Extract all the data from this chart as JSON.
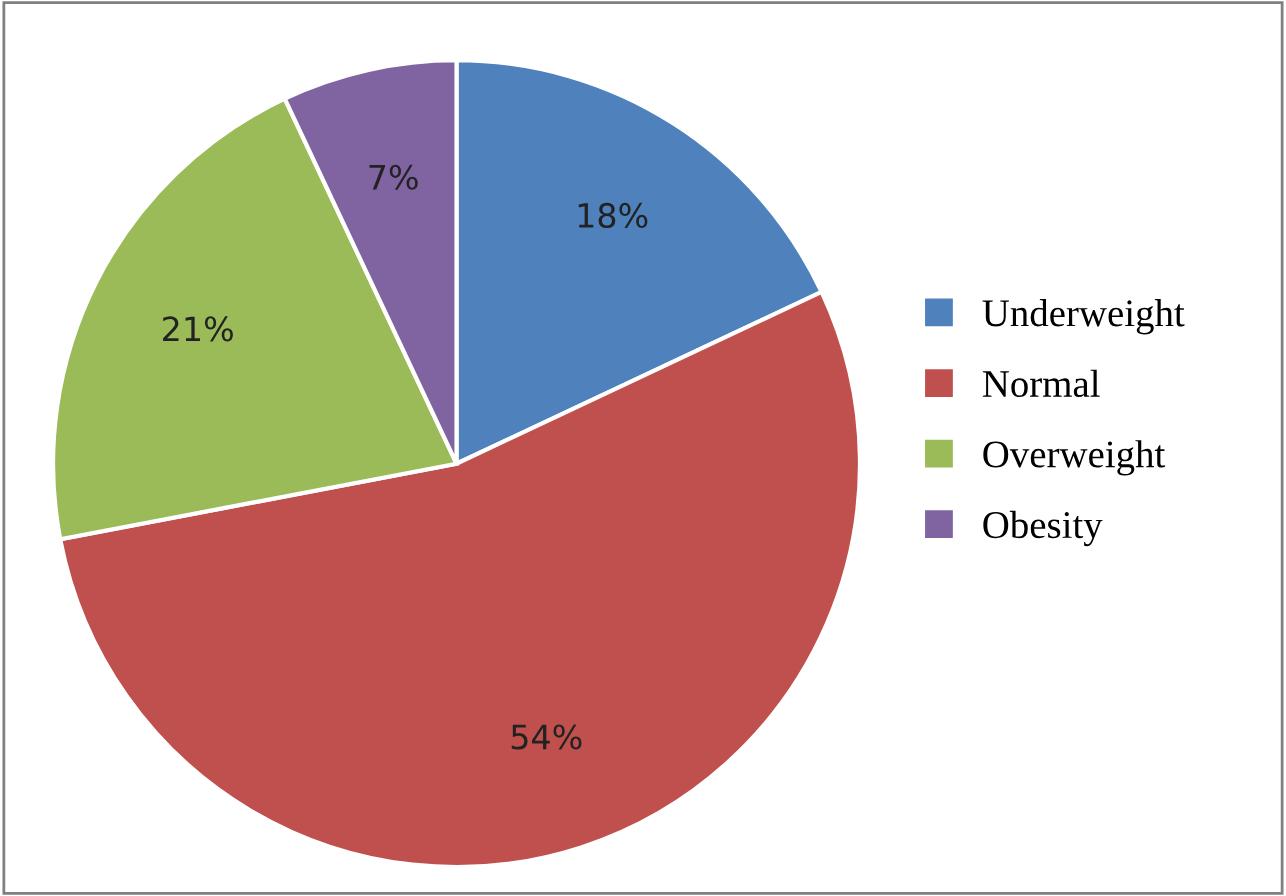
{
  "chart_data": {
    "type": "pie",
    "categories": [
      "Underweight",
      "Normal",
      "Overweight",
      "Obesity"
    ],
    "values": [
      18,
      54,
      21,
      7
    ],
    "value_labels": [
      "18%",
      "54%",
      "21%",
      "7%"
    ],
    "colors": [
      "#4f81bd",
      "#c0504d",
      "#9bbb59",
      "#8064a2"
    ],
    "legend": "right"
  }
}
